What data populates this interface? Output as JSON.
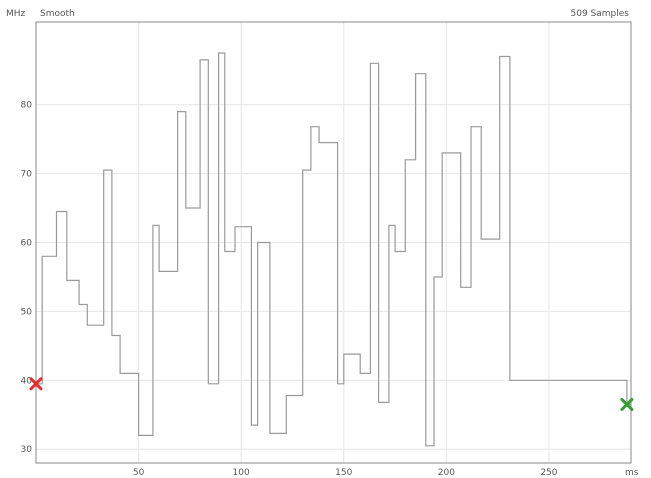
{
  "chart_data": {
    "type": "line",
    "y_unit_label": "MHz",
    "x_unit_label": "ms",
    "left_annotation": "Smooth",
    "right_annotation": "509 Samples",
    "xlim": [
      0,
      290
    ],
    "ylim": [
      28,
      92
    ],
    "grid": true,
    "x_ticks": [
      50,
      100,
      150,
      200,
      250
    ],
    "y_ticks": [
      30,
      40,
      50,
      60,
      70,
      80
    ],
    "series": [
      {
        "step": true,
        "x": [
          0,
          3,
          10,
          15,
          17,
          21,
          25,
          29,
          33,
          37,
          41,
          46,
          50,
          55,
          57,
          60,
          66,
          69,
          73,
          80,
          84,
          89,
          92,
          97,
          100,
          105,
          108,
          114,
          118,
          122,
          126,
          130,
          134,
          138,
          143,
          147,
          150,
          154,
          158,
          163,
          167,
          172,
          175,
          180,
          185,
          190,
          194,
          198,
          203,
          207,
          212,
          217,
          222,
          226,
          231,
          235,
          239,
          242,
          246,
          250,
          254,
          257,
          261,
          265,
          270,
          274,
          280,
          284,
          288
        ],
        "y": [
          39.5,
          58,
          64.5,
          54.5,
          54.5,
          51,
          48,
          48,
          70.5,
          46.5,
          41,
          41,
          32,
          32,
          62.5,
          55.8,
          55.8,
          79,
          65,
          86.5,
          39.5,
          87.5,
          58.7,
          62.3,
          62.3,
          33.5,
          60,
          32.3,
          32.3,
          37.8,
          37.8,
          70.5,
          76.8,
          74.5,
          74.5,
          39.5,
          43.8,
          43.8,
          41,
          86,
          36.8,
          62.5,
          58.7,
          72,
          84.5,
          30.5,
          55,
          73,
          73,
          53.5,
          76.8,
          60.5,
          60.5,
          87,
          40,
          40,
          40,
          40,
          40,
          40,
          40,
          40,
          40,
          40,
          40,
          40,
          40,
          40,
          36.5
        ]
      }
    ],
    "markers": [
      {
        "x": 0,
        "y": 39.5,
        "color": "#e03030",
        "kind": "start"
      },
      {
        "x": 288,
        "y": 36.5,
        "color": "#3a9a3a",
        "kind": "end"
      }
    ]
  }
}
